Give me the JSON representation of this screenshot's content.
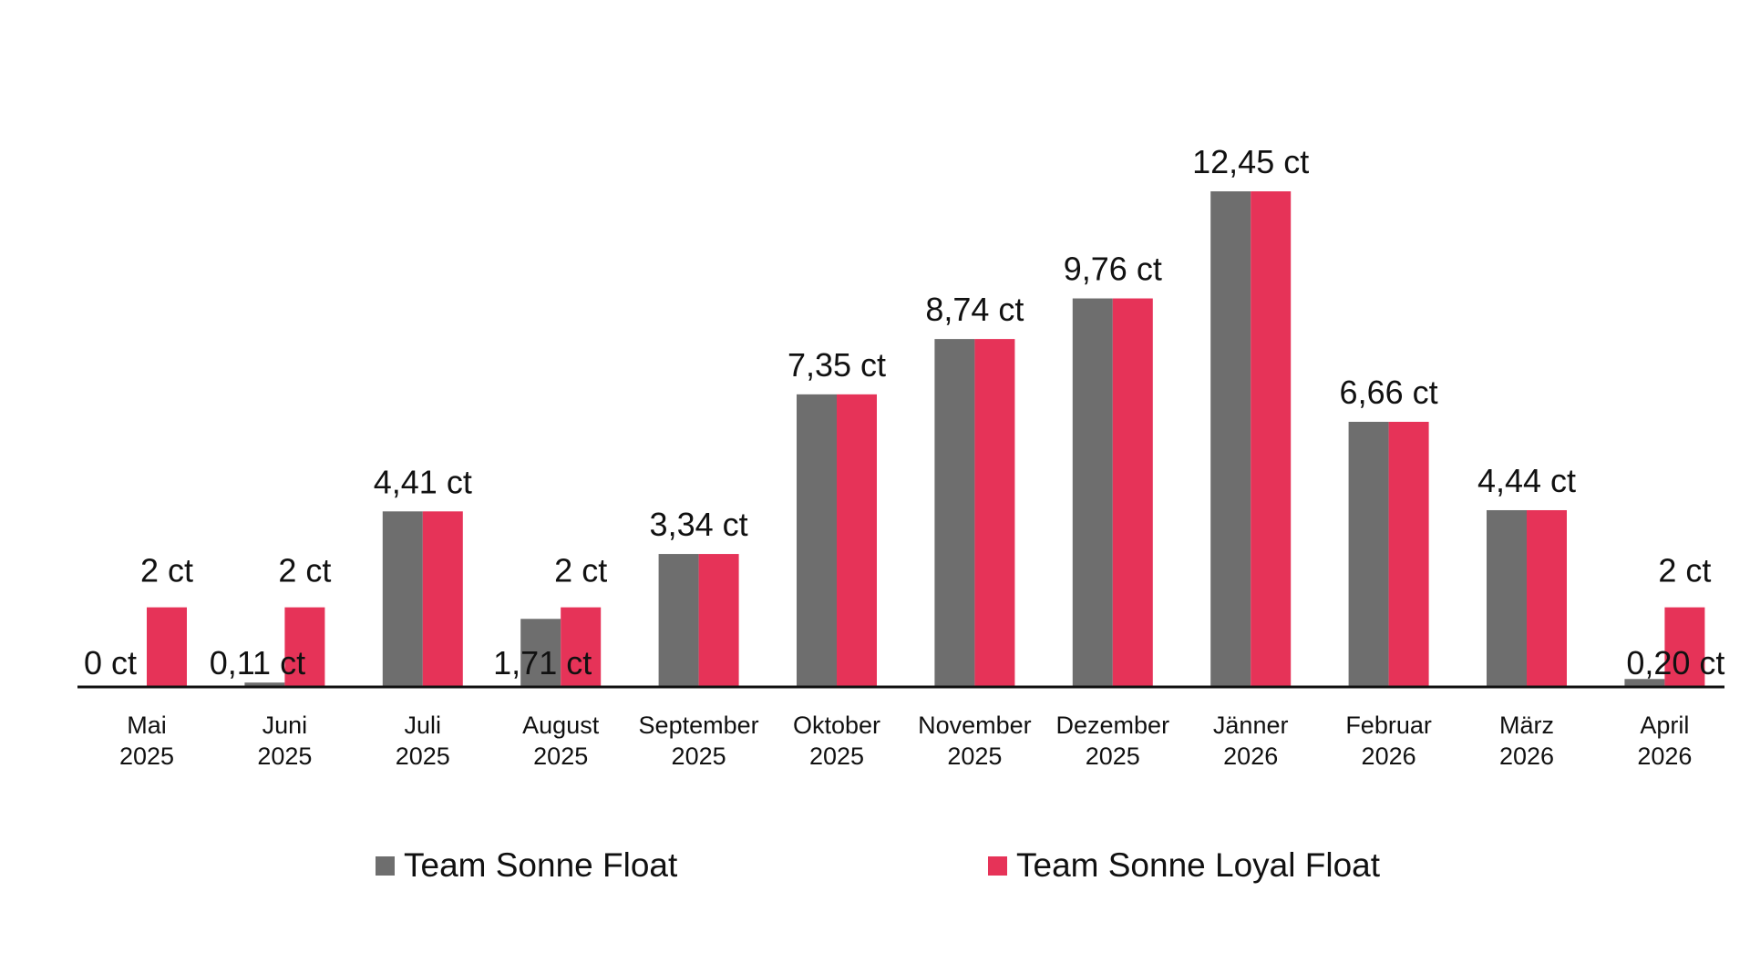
{
  "chart_data": {
    "type": "bar",
    "categories": [
      [
        "Mai",
        "2025"
      ],
      [
        "Juni",
        "2025"
      ],
      [
        "Juli",
        "2025"
      ],
      [
        "August",
        "2025"
      ],
      [
        "September",
        "2025"
      ],
      [
        "Oktober",
        "2025"
      ],
      [
        "November",
        "2025"
      ],
      [
        "Dezember",
        "2025"
      ],
      [
        "Jänner",
        "2026"
      ],
      [
        "Februar",
        "2026"
      ],
      [
        "März",
        "2026"
      ],
      [
        "April",
        "2026"
      ]
    ],
    "series": [
      {
        "name": "Team Sonne Float",
        "color": "#6e6e6e",
        "values": [
          0,
          0.11,
          4.41,
          1.71,
          3.34,
          7.35,
          8.74,
          9.76,
          12.45,
          6.66,
          4.44,
          0.2
        ],
        "labels": [
          "0 ct",
          "0,11 ct",
          "4,41 ct",
          "1,71 ct",
          "3,34 ct",
          "7,35 ct",
          "8,74 ct",
          "9,76 ct",
          "12,45 ct",
          "6,66 ct",
          "4,44 ct",
          "0,20 ct"
        ]
      },
      {
        "name": "Team Sonne Loyal Float",
        "color": "#e63358",
        "values": [
          2,
          2,
          4.41,
          2,
          3.34,
          7.35,
          8.74,
          9.76,
          12.45,
          6.66,
          4.44,
          2
        ],
        "labels": [
          "2 ct",
          "2 ct",
          "",
          "2 ct",
          "",
          "",
          "",
          "",
          "",
          "",
          "",
          "2 ct"
        ]
      }
    ],
    "xlabel": "",
    "ylabel": "",
    "ylim": [
      0,
      12.45
    ],
    "grid": false,
    "legend_position": "bottom"
  }
}
